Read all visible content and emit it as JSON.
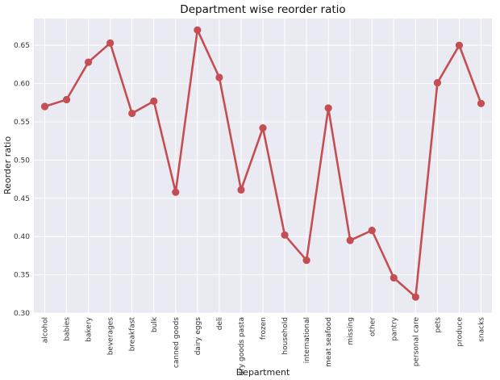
{
  "chart_data": {
    "type": "line",
    "title": "Department wise reorder ratio",
    "xlabel": "Department",
    "ylabel": "Reorder ratio",
    "ylim": [
      0.3,
      0.685
    ],
    "yticks": [
      "0.30",
      "0.35",
      "0.40",
      "0.45",
      "0.50",
      "0.55",
      "0.60",
      "0.65"
    ],
    "grid": true,
    "categories": [
      "alcohol",
      "babies",
      "bakery",
      "beverages",
      "breakfast",
      "bulk",
      "canned goods",
      "dairy eggs",
      "deli",
      "dry goods pasta",
      "frozen",
      "household",
      "international",
      "meat seafood",
      "missing",
      "other",
      "pantry",
      "personal care",
      "pets",
      "produce",
      "snacks"
    ],
    "values": [
      0.57,
      0.579,
      0.628,
      0.653,
      0.561,
      0.577,
      0.458,
      0.67,
      0.608,
      0.461,
      0.542,
      0.402,
      0.369,
      0.568,
      0.395,
      0.408,
      0.346,
      0.321,
      0.601,
      0.65,
      0.574
    ],
    "color": "#c44e52",
    "background": "#eaeaf2"
  }
}
